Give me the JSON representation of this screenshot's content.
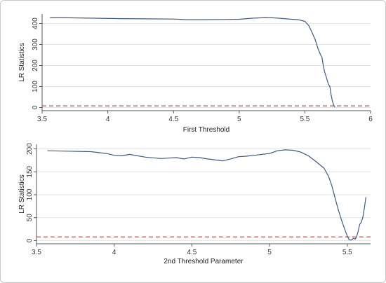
{
  "chart_data": [
    {
      "type": "line",
      "title": "",
      "xlabel": "First Threshold",
      "ylabel": "LR Statistics",
      "xlim": [
        3.5,
        6
      ],
      "ylim": [
        -15,
        445
      ],
      "xticks": [
        3.5,
        4,
        4.5,
        5,
        5.5,
        6
      ],
      "xtick_labels": [
        "3.5",
        "4",
        "4.5",
        "5",
        "5.5",
        "6"
      ],
      "yticks": [
        0,
        100,
        200,
        300,
        400
      ],
      "ytick_labels": [
        "0",
        "100",
        "200",
        "300",
        "400"
      ],
      "grid": true,
      "line_color": "#3d5a80",
      "reference_line": {
        "y": 8,
        "color": "#b04a4a",
        "style": "dashed"
      },
      "series": [
        {
          "x": [
            3.56,
            3.7,
            3.9,
            4.1,
            4.3,
            4.5,
            4.6,
            4.7,
            4.9,
            5.0,
            5.1,
            5.2,
            5.25,
            5.3,
            5.4,
            5.45,
            5.5,
            5.53,
            5.56,
            5.58,
            5.6,
            5.62,
            5.63,
            5.64,
            5.65,
            5.66,
            5.67,
            5.68,
            5.69,
            5.7,
            5.71,
            5.72,
            5.73
          ],
          "y": [
            428,
            427,
            425,
            423,
            422,
            421,
            418,
            418,
            419,
            420,
            425,
            428,
            427,
            425,
            420,
            418,
            410,
            390,
            350,
            320,
            280,
            250,
            240,
            200,
            170,
            150,
            130,
            110,
            100,
            60,
            30,
            10,
            2
          ]
        }
      ]
    },
    {
      "type": "line",
      "title": "",
      "xlabel": "2nd Threshold Parameter",
      "ylabel": "LR Statistics",
      "xlim": [
        3.5,
        5.65
      ],
      "ylim": [
        -7,
        210
      ],
      "xticks": [
        3.5,
        4,
        4.5,
        5,
        5.5
      ],
      "xtick_labels": [
        "3.5",
        "4",
        "4.5",
        "5",
        "5.5"
      ],
      "yticks": [
        0,
        50,
        100,
        150,
        200
      ],
      "ytick_labels": [
        "0",
        "50",
        "100",
        "150",
        "200"
      ],
      "grid": true,
      "line_color": "#3d5a80",
      "reference_line": {
        "y": 8,
        "color": "#b04a4a",
        "style": "dashed"
      },
      "series": [
        {
          "x": [
            3.57,
            3.7,
            3.85,
            3.95,
            4.0,
            4.05,
            4.1,
            4.2,
            4.3,
            4.4,
            4.45,
            4.5,
            4.55,
            4.6,
            4.7,
            4.75,
            4.8,
            4.85,
            4.9,
            5.0,
            5.05,
            5.1,
            5.15,
            5.2,
            5.25,
            5.3,
            5.35,
            5.38,
            5.4,
            5.42,
            5.44,
            5.46,
            5.48,
            5.5,
            5.51,
            5.52,
            5.53,
            5.54,
            5.55,
            5.56,
            5.57,
            5.58,
            5.59,
            5.6,
            5.61,
            5.62
          ],
          "y": [
            196,
            195,
            194,
            190,
            186,
            185,
            188,
            182,
            179,
            181,
            178,
            182,
            181,
            178,
            174,
            178,
            183,
            184,
            186,
            190,
            196,
            198,
            197,
            193,
            185,
            172,
            158,
            140,
            120,
            95,
            70,
            48,
            28,
            10,
            3,
            1,
            2,
            5,
            3,
            8,
            20,
            35,
            40,
            50,
            70,
            95
          ]
        }
      ]
    }
  ]
}
